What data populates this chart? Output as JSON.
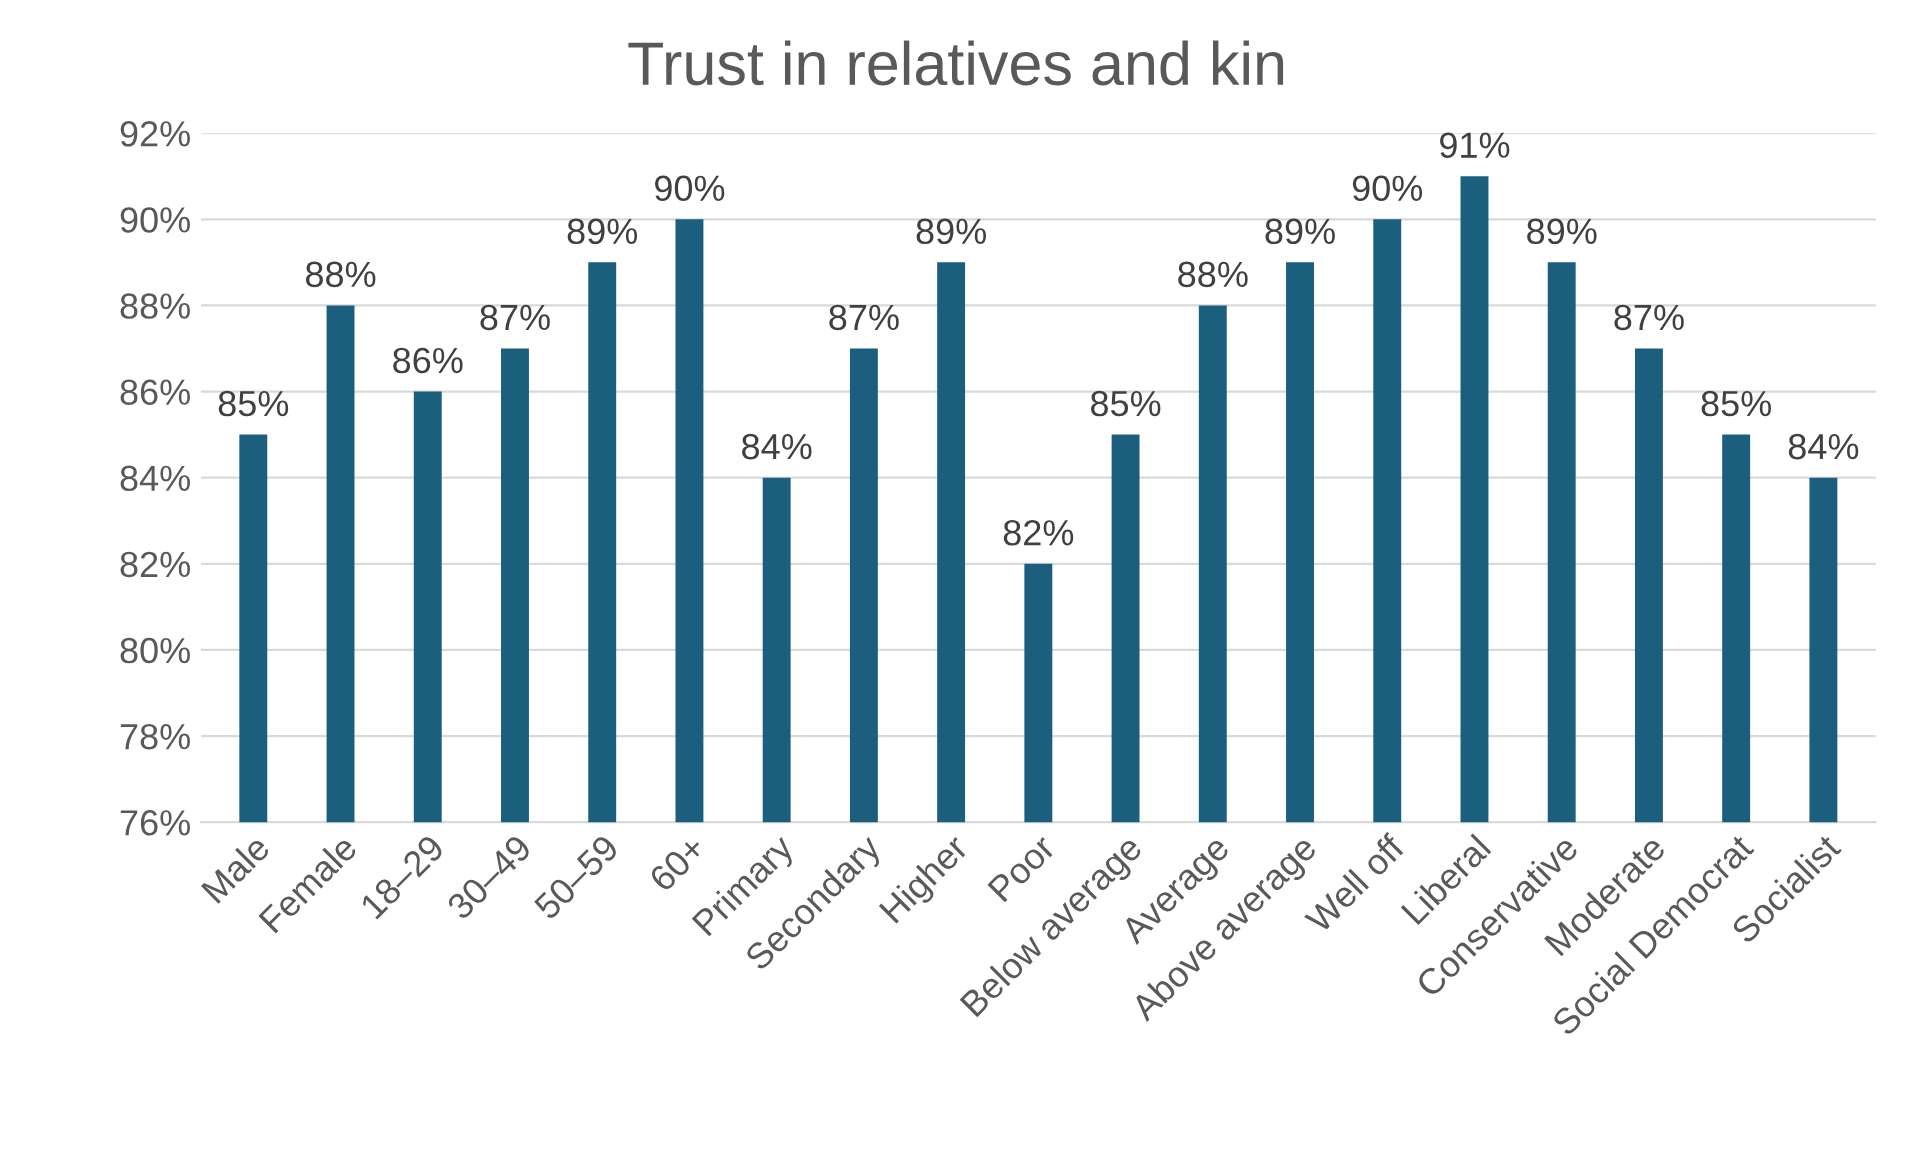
{
  "chart_data": {
    "type": "bar",
    "title": "Trust in relatives and kin",
    "categories": [
      "Male",
      "Female",
      "18–29",
      "30–49",
      "50–59",
      "60+",
      "Primary",
      "Secondary",
      "Higher",
      "Poor",
      "Below average",
      "Average",
      "Above average",
      "Well off",
      "Liberal",
      "Conservative",
      "Moderate",
      "Social Democrat",
      "Socialist"
    ],
    "values": [
      85,
      88,
      86,
      87,
      89,
      90,
      84,
      87,
      89,
      82,
      85,
      88,
      89,
      90,
      91,
      89,
      87,
      85,
      84
    ],
    "value_labels": [
      "85%",
      "88%",
      "86%",
      "87%",
      "89%",
      "90%",
      "84%",
      "87%",
      "89%",
      "82%",
      "85%",
      "88%",
      "89%",
      "90%",
      "91%",
      "89%",
      "87%",
      "85%",
      "84%"
    ],
    "color": "#1b5e7e",
    "ylim": [
      76,
      92
    ],
    "yticks": [
      {
        "value": 76,
        "label": "76%"
      },
      {
        "value": 78,
        "label": "78%"
      },
      {
        "value": 80,
        "label": "80%"
      },
      {
        "value": 82,
        "label": "82%"
      },
      {
        "value": 84,
        "label": "84%"
      },
      {
        "value": 86,
        "label": "86%"
      },
      {
        "value": 88,
        "label": "88%"
      },
      {
        "value": 90,
        "label": "90%"
      },
      {
        "value": 92,
        "label": "92%"
      }
    ],
    "grid": "y",
    "legend": false
  }
}
